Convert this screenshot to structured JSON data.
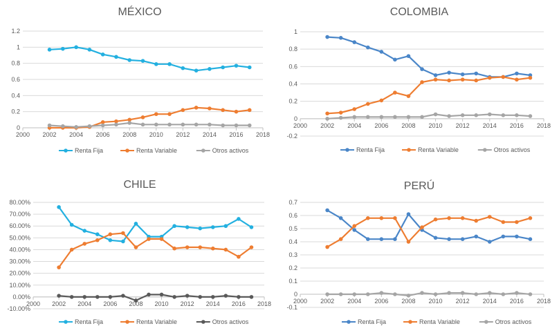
{
  "chart_data": [
    {
      "type": "line",
      "title": "MÉXICO",
      "xlim": [
        2000,
        2018
      ],
      "xticks": [
        2000,
        2002,
        2004,
        2006,
        2008,
        2010,
        2012,
        2014,
        2016,
        2018
      ],
      "xtick_labels": [
        "2000",
        "2002",
        "2004",
        "2006",
        "2008",
        "2010",
        "2012",
        "2014",
        "2016",
        "2018"
      ],
      "ylim": [
        0,
        1.2
      ],
      "yticks": [
        0,
        0.2,
        0.4,
        0.6,
        0.8,
        1,
        1.2
      ],
      "ytick_labels": [
        "0",
        "0.2",
        "0.4",
        "0.6",
        "0.8",
        "1",
        "1.2"
      ],
      "x": [
        2002,
        2003,
        2004,
        2005,
        2006,
        2007,
        2008,
        2009,
        2010,
        2011,
        2012,
        2013,
        2014,
        2015,
        2016,
        2017
      ],
      "series": [
        {
          "name": "Renta Fija",
          "color": "#23b0e0",
          "values": [
            0.97,
            0.98,
            1.0,
            0.97,
            0.91,
            0.88,
            0.84,
            0.83,
            0.79,
            0.79,
            0.74,
            0.71,
            0.73,
            0.75,
            0.77,
            0.75
          ]
        },
        {
          "name": "Renta Variable",
          "color": "#ee7d31",
          "values": [
            0.0,
            0.0,
            0.0,
            0.01,
            0.07,
            0.08,
            0.1,
            0.13,
            0.17,
            0.17,
            0.22,
            0.25,
            0.24,
            0.22,
            0.2,
            0.22
          ]
        },
        {
          "name": "Otros activos",
          "color": "#a5a5a5",
          "values": [
            0.03,
            0.02,
            0.01,
            0.02,
            0.03,
            0.04,
            0.06,
            0.04,
            0.04,
            0.04,
            0.04,
            0.04,
            0.04,
            0.03,
            0.03,
            0.03
          ]
        }
      ]
    },
    {
      "type": "line",
      "title": "COLOMBIA",
      "xlim": [
        2000,
        2018
      ],
      "xticks": [
        2000,
        2002,
        2004,
        2006,
        2008,
        2010,
        2012,
        2014,
        2016,
        2018
      ],
      "xtick_labels": [
        "2000",
        "2002",
        "2004",
        "2006",
        "2008",
        "2010",
        "2012",
        "2014",
        "2016",
        "2018"
      ],
      "ylim": [
        -0.2,
        1
      ],
      "yticks": [
        -0.2,
        0,
        0.2,
        0.4,
        0.6,
        0.8,
        1
      ],
      "ytick_labels": [
        "-0.2",
        "0",
        "0.2",
        "0.4",
        "0.6",
        "0.8",
        "1"
      ],
      "x": [
        2002,
        2003,
        2004,
        2005,
        2006,
        2007,
        2008,
        2009,
        2010,
        2011,
        2012,
        2013,
        2014,
        2015,
        2016,
        2017
      ],
      "series": [
        {
          "name": "Renta Fija",
          "color": "#4a86c8",
          "values": [
            0.94,
            0.93,
            0.88,
            0.82,
            0.77,
            0.68,
            0.72,
            0.57,
            0.5,
            0.53,
            0.51,
            0.52,
            0.48,
            0.48,
            0.52,
            0.5
          ]
        },
        {
          "name": "Renta Variable",
          "color": "#ee7d31",
          "values": [
            0.06,
            0.07,
            0.11,
            0.17,
            0.21,
            0.3,
            0.26,
            0.42,
            0.45,
            0.44,
            0.45,
            0.44,
            0.47,
            0.48,
            0.45,
            0.47
          ]
        },
        {
          "name": "Otros activos",
          "color": "#a5a5a5",
          "values": [
            0.0,
            0.01,
            0.02,
            0.02,
            0.02,
            0.02,
            0.02,
            0.02,
            0.05,
            0.03,
            0.04,
            0.04,
            0.05,
            0.04,
            0.04,
            0.03
          ]
        }
      ]
    },
    {
      "type": "line",
      "title": "CHILE",
      "xlim": [
        2000,
        2018
      ],
      "xticks": [
        2000,
        2002,
        2004,
        2006,
        2008,
        2010,
        2012,
        2014,
        2016,
        2018
      ],
      "xtick_labels": [
        "2000",
        "2002",
        "2004",
        "2006",
        "2008",
        "2010",
        "2012",
        "2014",
        "2016",
        "2018"
      ],
      "ylim": [
        -10,
        80
      ],
      "yticks": [
        -10,
        0,
        10,
        20,
        30,
        40,
        50,
        60,
        70,
        80
      ],
      "ytick_labels": [
        "-10.00%",
        "0.00%",
        "10.00%",
        "20.00%",
        "30.00%",
        "40.00%",
        "50.00%",
        "60.00%",
        "70.00%",
        "80.00%"
      ],
      "x": [
        2002,
        2003,
        2004,
        2005,
        2006,
        2007,
        2008,
        2009,
        2010,
        2011,
        2012,
        2013,
        2014,
        2015,
        2016,
        2017
      ],
      "series": [
        {
          "name": "Renta Fija",
          "color": "#23b0e0",
          "values": [
            76,
            61,
            56,
            53,
            48,
            47,
            62,
            51,
            51,
            60,
            59,
            58,
            59,
            60,
            66,
            59
          ]
        },
        {
          "name": "Renta Variable",
          "color": "#ee7d31",
          "values": [
            25,
            40,
            45,
            48,
            53,
            54,
            42,
            49,
            49,
            41,
            42,
            42,
            41,
            40,
            34,
            42
          ]
        },
        {
          "name": "Otros activos",
          "color": "#595959",
          "values": [
            1,
            0,
            0,
            0,
            0,
            1,
            -3,
            2,
            2,
            0,
            1,
            0,
            0,
            1,
            0,
            0
          ]
        }
      ]
    },
    {
      "type": "line",
      "title": "PERÚ",
      "xlim": [
        2000,
        2018
      ],
      "xticks": [
        2000,
        2002,
        2004,
        2006,
        2008,
        2010,
        2012,
        2014,
        2016,
        2018
      ],
      "xtick_labels": [
        "2000",
        "2002",
        "2004",
        "2006",
        "2008",
        "2010",
        "2012",
        "2014",
        "2016",
        "2018"
      ],
      "ylim": [
        -0.1,
        0.7
      ],
      "yticks": [
        -0.1,
        0,
        0.1,
        0.2,
        0.3,
        0.4,
        0.5,
        0.6,
        0.7
      ],
      "ytick_labels": [
        "-0.1",
        "0",
        "0.1",
        "0.2",
        "0.3",
        "0.4",
        "0.5",
        "0.6",
        "0.7"
      ],
      "x": [
        2002,
        2003,
        2004,
        2005,
        2006,
        2007,
        2008,
        2009,
        2010,
        2011,
        2012,
        2013,
        2014,
        2015,
        2016,
        2017
      ],
      "series": [
        {
          "name": "Renta Fija",
          "color": "#4a86c8",
          "values": [
            0.64,
            0.58,
            0.49,
            0.42,
            0.42,
            0.42,
            0.61,
            0.49,
            0.43,
            0.42,
            0.42,
            0.44,
            0.4,
            0.44,
            0.44,
            0.42
          ]
        },
        {
          "name": "Renta Variable",
          "color": "#ee7d31",
          "values": [
            0.36,
            0.42,
            0.52,
            0.58,
            0.58,
            0.58,
            0.4,
            0.51,
            0.57,
            0.58,
            0.58,
            0.56,
            0.59,
            0.55,
            0.55,
            0.58
          ]
        },
        {
          "name": "Otros activos",
          "color": "#a5a5a5",
          "values": [
            0.0,
            0.0,
            0.0,
            0.0,
            0.01,
            0.0,
            -0.01,
            0.01,
            0.0,
            0.01,
            0.01,
            0.0,
            0.01,
            0.0,
            0.01,
            0.0
          ]
        }
      ]
    }
  ]
}
